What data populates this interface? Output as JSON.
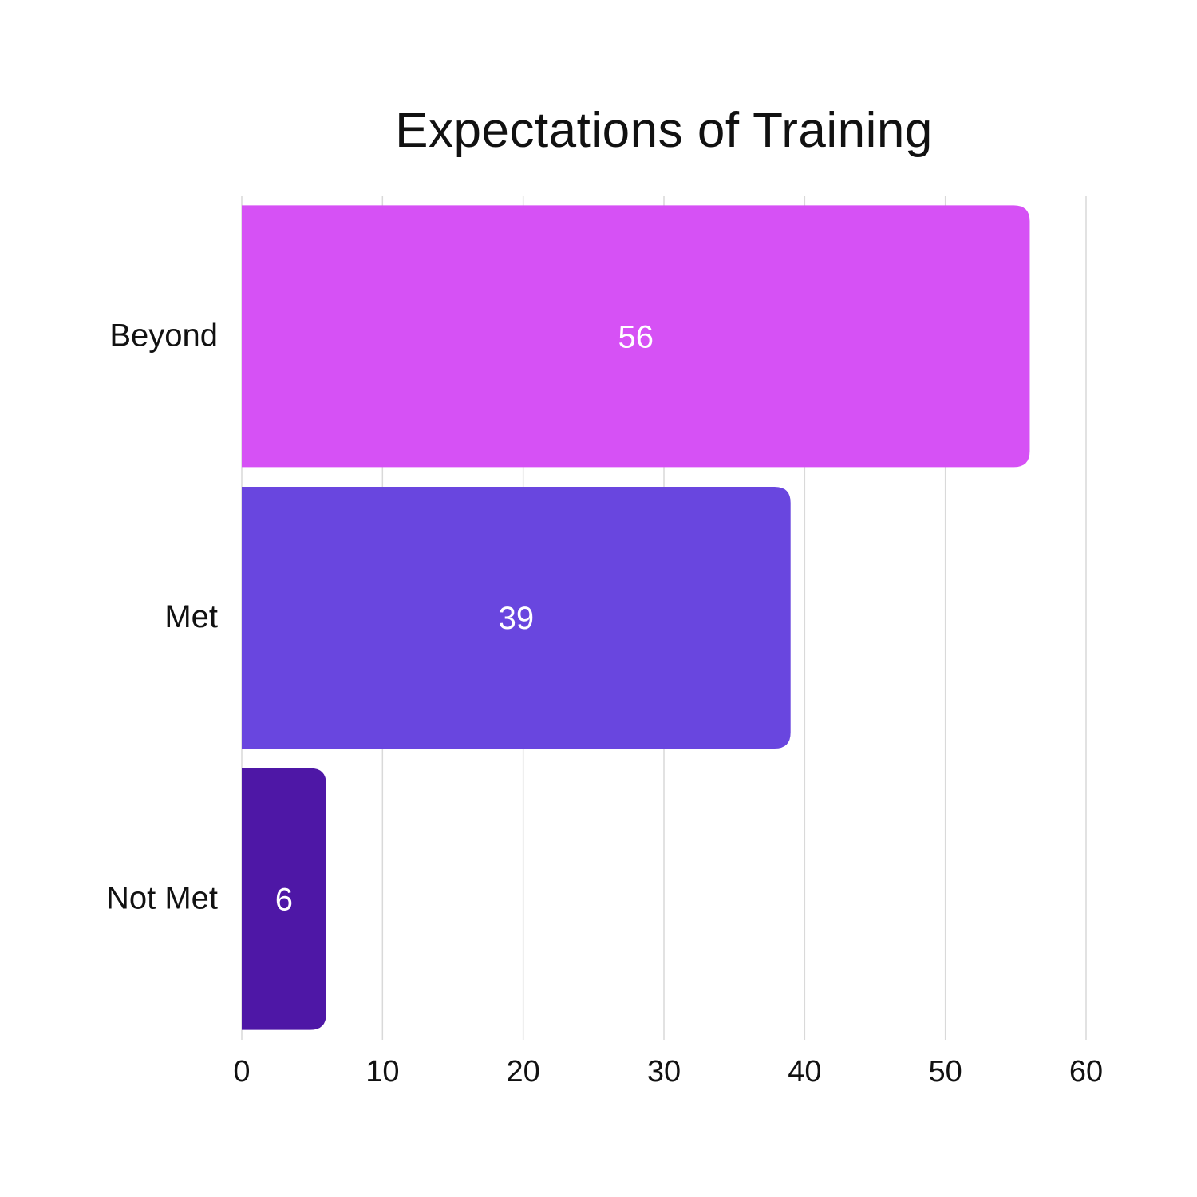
{
  "chart_data": {
    "type": "bar",
    "orientation": "horizontal",
    "title": "Expectations of Training",
    "xlabel": "",
    "ylabel": "",
    "categories": [
      "Beyond",
      "Met",
      "Not Met"
    ],
    "values": [
      56,
      39,
      6
    ],
    "value_labels": [
      "56",
      "39",
      "6"
    ],
    "colors": [
      "#d651f5",
      "#6946df",
      "#4e17a6"
    ],
    "xlim": [
      0,
      60
    ],
    "xticks": [
      0,
      10,
      20,
      30,
      40,
      50,
      60
    ],
    "xtick_labels": [
      "0",
      "10",
      "20",
      "30",
      "40",
      "50",
      "60"
    ],
    "grid": "vertical",
    "legend": "none"
  }
}
